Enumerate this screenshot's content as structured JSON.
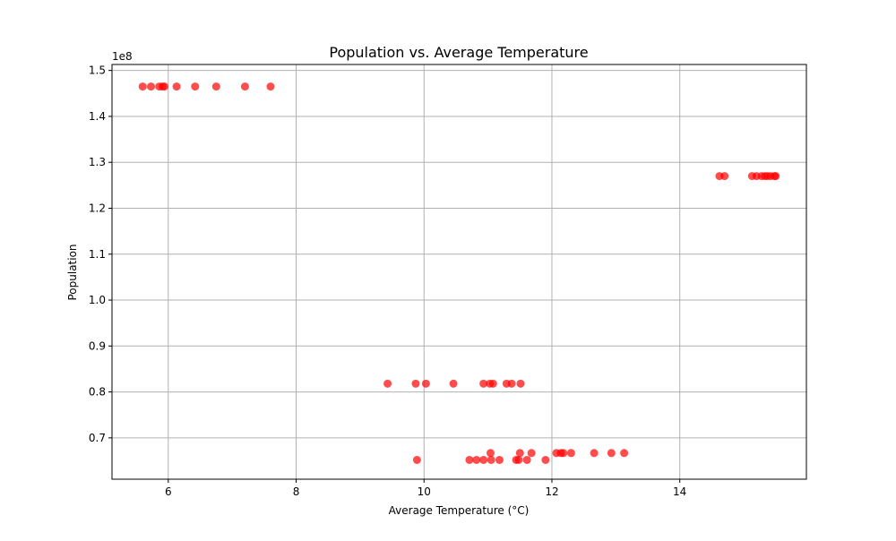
{
  "chart_data": {
    "type": "scatter",
    "title": "Population vs. Average Temperature",
    "xlabel": "Average Temperature (°C)",
    "ylabel": "Population",
    "y_offset_label": "1e8",
    "xlim": [
      5.12,
      15.98
    ],
    "ylim": [
      61000000,
      151300000
    ],
    "x_ticks": [
      6,
      8,
      10,
      12,
      14
    ],
    "x_tick_labels": [
      "6",
      "8",
      "10",
      "12",
      "14"
    ],
    "y_ticks": [
      70000000,
      80000000,
      90000000,
      100000000,
      110000000,
      120000000,
      130000000,
      140000000,
      150000000
    ],
    "y_tick_labels": [
      "0.7",
      "0.8",
      "0.9",
      "1.0",
      "1.1",
      "1.2",
      "1.3",
      "1.4",
      "1.5"
    ],
    "grid": true,
    "marker_color": "#ff0000",
    "marker_alpha": 0.7,
    "series": [
      {
        "points": [
          {
            "x": 5.6,
            "y": 146500000
          },
          {
            "x": 5.73,
            "y": 146500000
          },
          {
            "x": 5.86,
            "y": 146500000
          },
          {
            "x": 5.91,
            "y": 146500000
          },
          {
            "x": 5.94,
            "y": 146500000
          },
          {
            "x": 6.13,
            "y": 146500000
          },
          {
            "x": 6.42,
            "y": 146500000
          },
          {
            "x": 6.75,
            "y": 146500000
          },
          {
            "x": 7.2,
            "y": 146500000
          },
          {
            "x": 7.6,
            "y": 146500000
          },
          {
            "x": 14.62,
            "y": 127000000
          },
          {
            "x": 14.7,
            "y": 127000000
          },
          {
            "x": 15.13,
            "y": 127000000
          },
          {
            "x": 15.2,
            "y": 127000000
          },
          {
            "x": 15.28,
            "y": 127000000
          },
          {
            "x": 15.33,
            "y": 127000000
          },
          {
            "x": 15.37,
            "y": 127000000
          },
          {
            "x": 15.42,
            "y": 127000000
          },
          {
            "x": 15.48,
            "y": 127000000
          },
          {
            "x": 15.5,
            "y": 127000000
          },
          {
            "x": 9.43,
            "y": 81800000
          },
          {
            "x": 9.87,
            "y": 81800000
          },
          {
            "x": 10.03,
            "y": 81800000
          },
          {
            "x": 10.46,
            "y": 81800000
          },
          {
            "x": 10.93,
            "y": 81800000
          },
          {
            "x": 11.03,
            "y": 81800000
          },
          {
            "x": 11.08,
            "y": 81800000
          },
          {
            "x": 11.29,
            "y": 81800000
          },
          {
            "x": 11.37,
            "y": 81800000
          },
          {
            "x": 11.51,
            "y": 81800000
          },
          {
            "x": 11.04,
            "y": 66700000
          },
          {
            "x": 11.5,
            "y": 66700000
          },
          {
            "x": 11.68,
            "y": 66700000
          },
          {
            "x": 12.07,
            "y": 66700000
          },
          {
            "x": 12.14,
            "y": 66700000
          },
          {
            "x": 12.18,
            "y": 66700000
          },
          {
            "x": 12.3,
            "y": 66700000
          },
          {
            "x": 12.66,
            "y": 66700000
          },
          {
            "x": 12.93,
            "y": 66700000
          },
          {
            "x": 13.13,
            "y": 66700000
          },
          {
            "x": 9.89,
            "y": 65200000
          },
          {
            "x": 10.71,
            "y": 65200000
          },
          {
            "x": 10.82,
            "y": 65200000
          },
          {
            "x": 10.93,
            "y": 65200000
          },
          {
            "x": 11.05,
            "y": 65200000
          },
          {
            "x": 11.18,
            "y": 65200000
          },
          {
            "x": 11.44,
            "y": 65200000
          },
          {
            "x": 11.48,
            "y": 65200000
          },
          {
            "x": 11.61,
            "y": 65200000
          },
          {
            "x": 11.9,
            "y": 65200000
          }
        ]
      }
    ]
  }
}
